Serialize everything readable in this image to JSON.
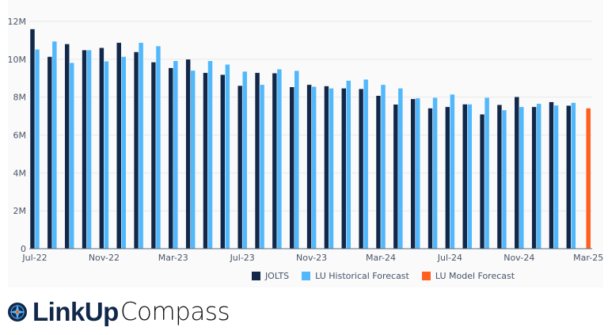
{
  "chart_data": {
    "type": "bar",
    "title": "",
    "xlabel": "",
    "ylabel": "",
    "ylim": [
      0,
      12000000
    ],
    "yticks": [
      "0",
      "2M",
      "4M",
      "6M",
      "8M",
      "10M",
      "12M"
    ],
    "grid": true,
    "legend_position": "bottom",
    "categories": [
      "Jul-22",
      "Aug-22",
      "Sep-22",
      "Oct-22",
      "Nov-22",
      "Dec-22",
      "Jan-23",
      "Feb-23",
      "Mar-23",
      "Apr-23",
      "May-23",
      "Jun-23",
      "Jul-23",
      "Aug-23",
      "Sep-23",
      "Oct-23",
      "Nov-23",
      "Dec-23",
      "Jan-24",
      "Feb-24",
      "Mar-24",
      "Apr-24",
      "May-24",
      "Jun-24",
      "Jul-24",
      "Aug-24",
      "Sep-24",
      "Oct-24",
      "Nov-24",
      "Dec-24",
      "Jan-25",
      "Feb-25",
      "Mar-25"
    ],
    "xtick_labels": [
      "Jul-22",
      "Nov-22",
      "Mar-23",
      "Jul-23",
      "Nov-23",
      "Mar-24",
      "Jul-24",
      "Nov-24",
      "Mar-25"
    ],
    "series": [
      {
        "name": "JOLTS",
        "color": "#12284a",
        "values": [
          11.6,
          10.14,
          10.81,
          10.49,
          10.61,
          10.88,
          10.39,
          9.85,
          9.55,
          10.0,
          9.29,
          9.19,
          8.61,
          9.29,
          9.27,
          8.54,
          8.66,
          8.59,
          8.47,
          8.44,
          8.08,
          7.62,
          7.91,
          7.42,
          7.49,
          7.63,
          7.1,
          7.6,
          8.02,
          7.49,
          7.75,
          7.56,
          null
        ]
      },
      {
        "name": "LU Historical Forecast",
        "color": "#52b8fc",
        "values": [
          10.53,
          10.95,
          9.82,
          10.49,
          9.9,
          10.14,
          10.88,
          10.7,
          9.92,
          9.41,
          9.92,
          9.73,
          9.36,
          8.66,
          9.48,
          9.4,
          8.56,
          8.47,
          8.88,
          8.94,
          8.66,
          8.47,
          7.95,
          7.98,
          8.15,
          7.63,
          7.98,
          7.32,
          7.49,
          7.66,
          7.57,
          7.71,
          null
        ]
      },
      {
        "name": "LU Model Forecast",
        "color": "#ff5f1f",
        "values": [
          null,
          null,
          null,
          null,
          null,
          null,
          null,
          null,
          null,
          null,
          null,
          null,
          null,
          null,
          null,
          null,
          null,
          null,
          null,
          null,
          null,
          null,
          null,
          null,
          null,
          null,
          null,
          null,
          null,
          null,
          null,
          null,
          7.42
        ]
      }
    ],
    "value_unit": "millions"
  },
  "brand": {
    "name_bold": "LinkUp",
    "name_light": "Compass"
  }
}
